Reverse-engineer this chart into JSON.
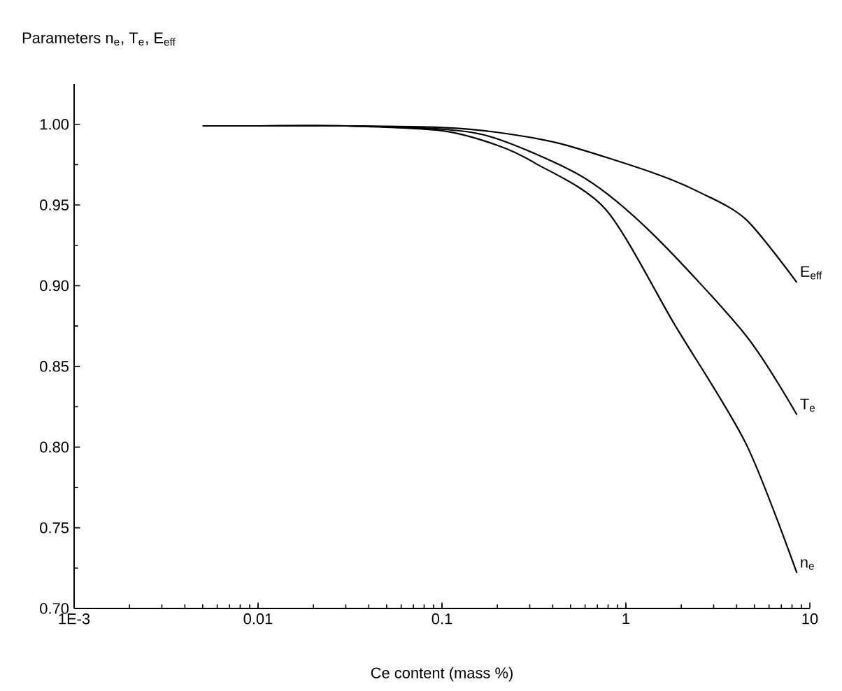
{
  "chart_data": {
    "type": "line",
    "ylabel": "Parameters n$_{e}$, T$_{e}$, E$_{eff}$",
    "xlabel": "Ce content (mass %)",
    "log": "x",
    "xlim": [
      0.001,
      10
    ],
    "ylim": [
      0.7,
      1.025
    ],
    "xticks": [
      {
        "value": 0.001,
        "label": "1E-3"
      },
      0.01,
      0.1,
      1,
      10
    ],
    "yticks": [
      {
        "value": 0.7,
        "label": "0.70"
      },
      0.75,
      {
        "value": 0.8,
        "label": "0.80"
      },
      0.85,
      {
        "value": 0.9,
        "label": "0.90"
      },
      0.95,
      {
        "value": 1.0,
        "label": "1.00"
      }
    ],
    "grid": false,
    "legend": false,
    "marker": "none",
    "line_style": "solid",
    "series": [
      {
        "name": "E$_{eff}$",
        "color": "#000000",
        "x": [
          0.005,
          0.01,
          0.03,
          0.1,
          0.2,
          0.44,
          1.4,
          2.5,
          4.5,
          8.5
        ],
        "values": [
          0.999,
          0.999,
          0.999,
          0.998,
          0.995,
          0.988,
          0.97,
          0.958,
          0.941,
          0.902
        ]
      },
      {
        "name": "T$_{e}$",
        "color": "#000000",
        "x": [
          0.005,
          0.01,
          0.03,
          0.1,
          0.2,
          0.59,
          1.4,
          4.5,
          8.5
        ],
        "values": [
          0.999,
          0.999,
          0.999,
          0.997,
          0.991,
          0.967,
          0.932,
          0.869,
          0.82
        ]
      },
      {
        "name": "n$_{e}$",
        "color": "#000000",
        "x": [
          0.005,
          0.01,
          0.03,
          0.1,
          0.2,
          0.32,
          0.78,
          1.86,
          4.5,
          8.5
        ],
        "values": [
          0.999,
          0.999,
          0.999,
          0.996,
          0.987,
          0.976,
          0.947,
          0.875,
          0.802,
          0.722
        ]
      }
    ]
  }
}
